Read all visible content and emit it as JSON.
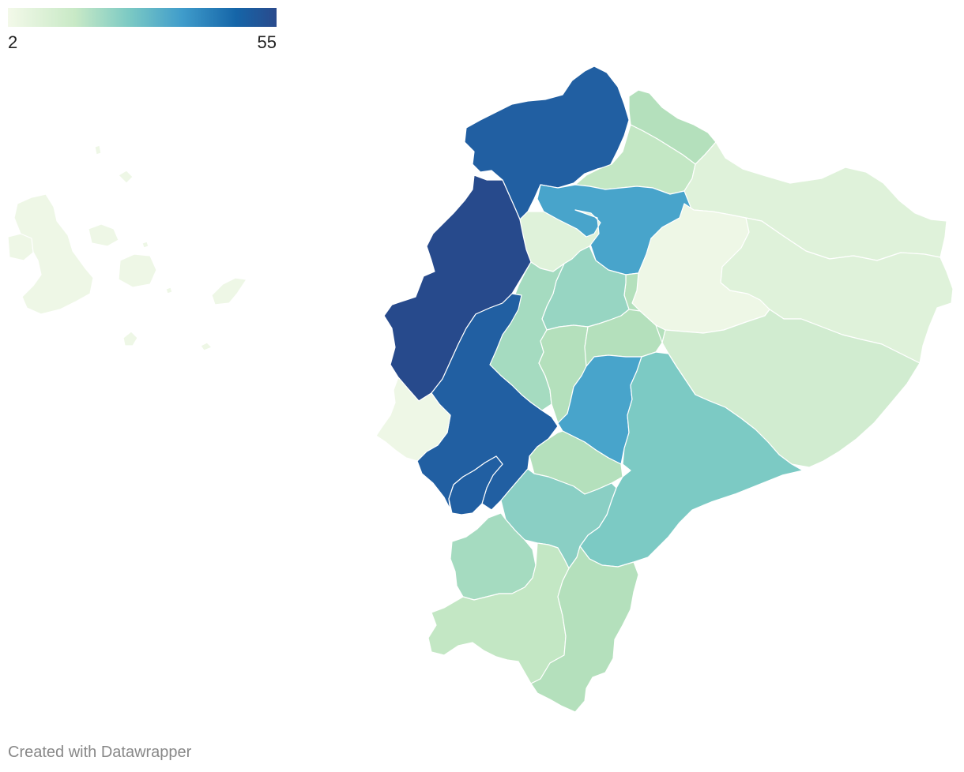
{
  "legend": {
    "min_label": "2",
    "max_label": "55",
    "scale_colors": [
      "#f3f9e9",
      "#c8e9c6",
      "#7ccac4",
      "#3f9ccb",
      "#1565a8",
      "#2a4a8c"
    ]
  },
  "map": {
    "colors": {
      "level_0": "#eef7e6",
      "level_1": "#dff2da",
      "level_2": "#d1ecd0",
      "level_3": "#c3e7c4",
      "level_4": "#b4e0bc",
      "level_5": "#a5dbc0",
      "level_6": "#97d5c2",
      "level_7": "#8acfc4",
      "level_8": "#7ccac4",
      "level_9": "#48a4cb",
      "level_10": "#215fa2",
      "level_11": "#274a8c",
      "border": "#ffffff"
    }
  },
  "footer": {
    "credit": "Created with Datawrapper"
  }
}
